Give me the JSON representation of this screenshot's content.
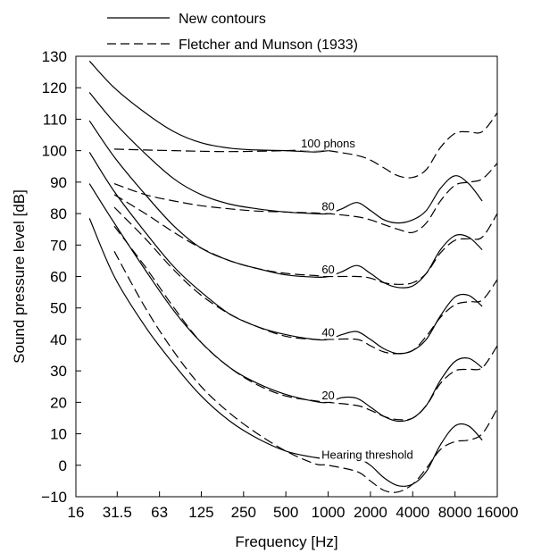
{
  "chart_data": {
    "type": "line",
    "title": "",
    "xlabel": "Frequency [Hz]",
    "ylabel": "Sound pressure level [dB]",
    "x_scale": "log2",
    "xlim": [
      16,
      16000
    ],
    "ylim": [
      -10,
      130
    ],
    "grid": false,
    "x_ticks": [
      16,
      31.5,
      63,
      125,
      250,
      500,
      1000,
      2000,
      4000,
      8000,
      16000
    ],
    "x_tick_labels": [
      "16",
      "31.5",
      "63",
      "125",
      "250",
      "500",
      "1000",
      "2000",
      "4000",
      "8000",
      "16000"
    ],
    "y_ticks": [
      -10,
      0,
      10,
      20,
      30,
      40,
      50,
      60,
      70,
      80,
      90,
      100,
      110,
      120,
      130
    ],
    "y_tick_labels": [
      "−10",
      "0",
      "10",
      "20",
      "30",
      "40",
      "50",
      "60",
      "70",
      "80",
      "90",
      "100",
      "110",
      "120",
      "130"
    ],
    "legend": {
      "position": "top",
      "entries": [
        {
          "label": "New contours",
          "style": "solid"
        },
        {
          "label": "Fletcher and Munson (1933)",
          "style": "dashed"
        }
      ]
    },
    "annotations": [
      {
        "text": "100 phons",
        "x": 1000,
        "y": 101
      },
      {
        "text": "80",
        "x": 1000,
        "y": 81
      },
      {
        "text": "60",
        "x": 1000,
        "y": 61
      },
      {
        "text": "40",
        "x": 1000,
        "y": 41
      },
      {
        "text": "20",
        "x": 1000,
        "y": 21
      },
      {
        "text": "Hearing threshold",
        "x": 1900,
        "y": 2
      }
    ],
    "series": [
      {
        "style": "solid",
        "x": [
          20,
          30,
          50,
          80,
          125,
          200,
          315,
          500,
          800,
          1000,
          1250,
          1600,
          2000,
          2500,
          3150,
          4000,
          5000,
          6300,
          8000,
          10000,
          12500
        ],
        "y": [
          78.5,
          60,
          44,
          32,
          22,
          14,
          8.5,
          4.5,
          2.5,
          2.3,
          3.2,
          2.5,
          0,
          -4,
          -6.5,
          -6,
          -2,
          6.5,
          12.5,
          12.5,
          8
        ]
      },
      {
        "style": "solid",
        "x": [
          20,
          30,
          50,
          80,
          125,
          200,
          315,
          500,
          800,
          1000,
          1250,
          1600,
          2000,
          2500,
          3150,
          4000,
          5000,
          6300,
          8000,
          10000,
          12500
        ],
        "y": [
          89.5,
          77,
          62,
          49,
          39,
          31,
          26,
          22.5,
          20.3,
          20,
          21.5,
          21.3,
          18.5,
          15.5,
          14,
          15,
          19,
          27,
          33,
          34,
          31
        ]
      },
      {
        "style": "solid",
        "x": [
          20,
          30,
          50,
          80,
          125,
          200,
          315,
          500,
          800,
          1000,
          1250,
          1600,
          2000,
          2500,
          3150,
          4000,
          5000,
          6300,
          8000,
          10000,
          12500
        ],
        "y": [
          99.5,
          87,
          74,
          63,
          55,
          48,
          44,
          41.5,
          40,
          40,
          41.5,
          42.5,
          40,
          37,
          35.5,
          36.5,
          40,
          47.5,
          53.5,
          54,
          50.5
        ]
      },
      {
        "style": "solid",
        "x": [
          20,
          30,
          50,
          80,
          125,
          200,
          315,
          500,
          800,
          1000,
          1250,
          1600,
          2000,
          2500,
          3150,
          4000,
          5000,
          6300,
          8000,
          10000,
          12500
        ],
        "y": [
          109.5,
          98,
          86,
          76,
          69,
          65,
          62.5,
          60.5,
          59.8,
          60,
          61.5,
          63.5,
          61,
          58,
          56.5,
          57,
          61,
          68.5,
          73,
          72.5,
          68.5
        ]
      },
      {
        "style": "solid",
        "x": [
          20,
          30,
          50,
          80,
          125,
          200,
          315,
          500,
          800,
          1000,
          1250,
          1600,
          2000,
          2500,
          3150,
          4000,
          5000,
          6300,
          8000,
          10000,
          12500
        ],
        "y": [
          118.5,
          109,
          99,
          91,
          86,
          83,
          81.5,
          80.5,
          80,
          80,
          81.5,
          83.5,
          81,
          78,
          77,
          78,
          81,
          88,
          92,
          89.5,
          84
        ]
      },
      {
        "style": "solid",
        "x": [
          20,
          30,
          50,
          80,
          125,
          200,
          315,
          500,
          800,
          1000
        ],
        "y": [
          128.5,
          120,
          112,
          106,
          102.5,
          100.8,
          100.2,
          100,
          99.6,
          100
        ]
      },
      {
        "style": "dashed",
        "x": [
          30,
          50,
          80,
          125,
          200,
          315,
          500,
          800,
          1000,
          1600,
          2000,
          2500,
          3150,
          4000,
          5000,
          6300,
          8000,
          10000,
          12500,
          16000
        ],
        "y": [
          68,
          50,
          36,
          25,
          16.5,
          10,
          4.5,
          0.5,
          0,
          -2,
          -5,
          -8,
          -8.5,
          -6,
          -1,
          5,
          7.5,
          8,
          10,
          18
        ]
      },
      {
        "style": "dashed",
        "x": [
          30,
          50,
          80,
          125,
          200,
          315,
          500,
          800,
          1000,
          1600,
          2000,
          2500,
          3150,
          4000,
          5000,
          6300,
          8000,
          10000,
          12500,
          16000
        ],
        "y": [
          76,
          63,
          50,
          39,
          31,
          25.5,
          22,
          20.5,
          20,
          19,
          17.5,
          15.5,
          14.5,
          15,
          19,
          26,
          30,
          30.5,
          31,
          38
        ]
      },
      {
        "style": "dashed",
        "x": [
          30,
          50,
          80,
          125,
          200,
          315,
          500,
          800,
          1000,
          1600,
          2000,
          2500,
          3150,
          4000,
          5000,
          6300,
          8000,
          10000,
          12500,
          16000
        ],
        "y": [
          82,
          72,
          62,
          54,
          48,
          44,
          41,
          40,
          40,
          40,
          38,
          36,
          35.5,
          36.5,
          41,
          47,
          51,
          52,
          52.5,
          59
        ]
      },
      {
        "style": "dashed",
        "x": [
          30,
          50,
          80,
          125,
          200,
          315,
          500,
          800,
          1000,
          1600,
          2000,
          2500,
          3150,
          4000,
          5000,
          6300,
          8000,
          10000,
          12500,
          16000
        ],
        "y": [
          86,
          80,
          74,
          69,
          65,
          62.5,
          61,
          60.3,
          60,
          60,
          59.5,
          58,
          57.5,
          58,
          61,
          67.5,
          71.5,
          72,
          72.5,
          80
        ]
      },
      {
        "style": "dashed",
        "x": [
          30,
          50,
          80,
          125,
          200,
          315,
          500,
          800,
          1000,
          1600,
          2000,
          2500,
          3150,
          4000,
          5000,
          6300,
          8000,
          10000,
          12500,
          16000
        ],
        "y": [
          89.5,
          86,
          84,
          82.5,
          81.5,
          80.8,
          80.5,
          80.2,
          80,
          79,
          78,
          76.5,
          75,
          74,
          77,
          84,
          89,
          90,
          91,
          96
        ]
      },
      {
        "style": "dashed",
        "x": [
          30,
          50,
          80,
          125,
          200,
          315,
          500,
          800,
          1000,
          1600,
          2000,
          2500,
          3150,
          4000,
          5000,
          6300,
          8000,
          10000,
          12500,
          16000
        ],
        "y": [
          100.5,
          100.2,
          100,
          99.8,
          99.7,
          99.8,
          100,
          100.3,
          100,
          98.5,
          97,
          94.5,
          92,
          91.5,
          94,
          101,
          105.5,
          106,
          106,
          112
        ]
      }
    ]
  }
}
